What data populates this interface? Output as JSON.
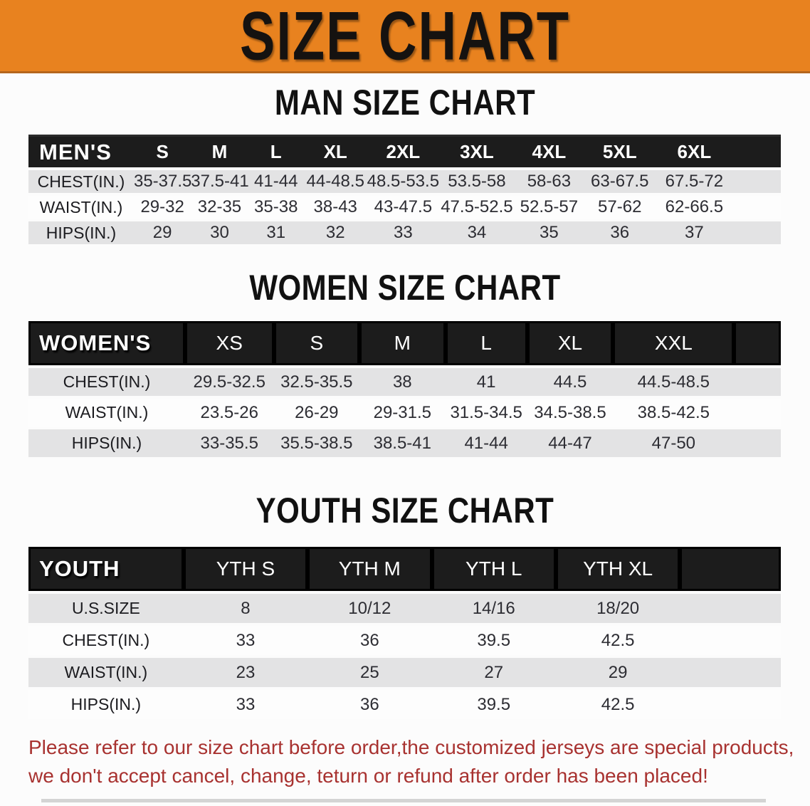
{
  "banner": {
    "title": "SIZE CHART"
  },
  "colors": {
    "banner_orange": "#e8821f",
    "header_black": "#1c1c1c",
    "stripe_gray": "#e3e3e4",
    "note_red": "#a83230"
  },
  "sections": [
    {
      "heading": "MAN SIZE CHART",
      "table_label": "MEN'S",
      "columns": [
        "S",
        "M",
        "L",
        "XL",
        "2XL",
        "3XL",
        "4XL",
        "5XL",
        "6XL"
      ],
      "rows": [
        {
          "label": "CHEST(IN.)",
          "values": [
            "35-37.5",
            "37.5-41",
            "41-44",
            "44-48.5",
            "48.5-53.5",
            "53.5-58",
            "58-63",
            "63-67.5",
            "67.5-72"
          ]
        },
        {
          "label": "WAIST(IN.)",
          "values": [
            "29-32",
            "32-35",
            "35-38",
            "38-43",
            "43-47.5",
            "47.5-52.5",
            "52.5-57",
            "57-62",
            "62-66.5"
          ]
        },
        {
          "label": "HIPS(IN.)",
          "values": [
            "29",
            "30",
            "31",
            "32",
            "33",
            "34",
            "35",
            "36",
            "37"
          ]
        }
      ]
    },
    {
      "heading": "WOMEN SIZE CHART",
      "table_label": "WOMEN'S",
      "columns": [
        "XS",
        "S",
        "M",
        "L",
        "XL",
        "XXL"
      ],
      "rows": [
        {
          "label": "CHEST(IN.)",
          "values": [
            "29.5-32.5",
            "32.5-35.5",
            "38",
            "41",
            "44.5",
            "44.5-48.5"
          ]
        },
        {
          "label": "WAIST(IN.)",
          "values": [
            "23.5-26",
            "26-29",
            "29-31.5",
            "31.5-34.5",
            "34.5-38.5",
            "38.5-42.5"
          ]
        },
        {
          "label": "HIPS(IN.)",
          "values": [
            "33-35.5",
            "35.5-38.5",
            "38.5-41",
            "41-44",
            "44-47",
            "47-50"
          ]
        }
      ]
    },
    {
      "heading": "YOUTH SIZE CHART",
      "table_label": "YOUTH",
      "columns": [
        "YTH S",
        "YTH M",
        "YTH L",
        "YTH XL"
      ],
      "rows": [
        {
          "label": "U.S.SIZE",
          "values": [
            "8",
            "10/12",
            "14/16",
            "18/20"
          ]
        },
        {
          "label": "CHEST(IN.)",
          "values": [
            "33",
            "36",
            "39.5",
            "42.5"
          ]
        },
        {
          "label": "WAIST(IN.)",
          "values": [
            "23",
            "25",
            "27",
            "29"
          ]
        },
        {
          "label": "HIPS(IN.)",
          "values": [
            "33",
            "36",
            "39.5",
            "42.5"
          ]
        }
      ]
    }
  ],
  "footer": {
    "line1": "Please refer to our size chart before order,the customized jerseys are special products,",
    "line2": "we don't accept cancel, change, teturn or refund after order has been placed!"
  }
}
